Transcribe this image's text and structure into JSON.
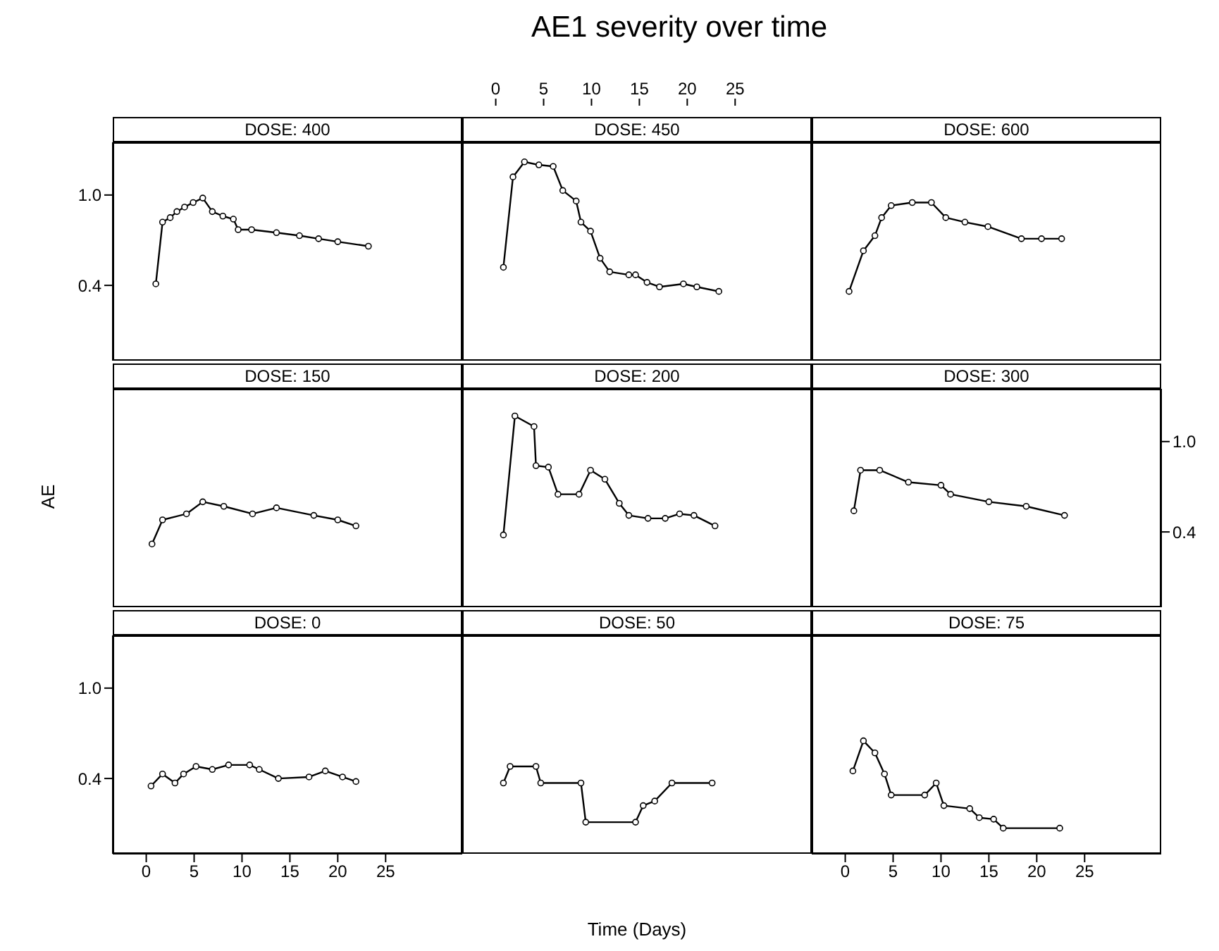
{
  "chart_data": [
    {
      "type": "other",
      "title": "AE1 severity over time",
      "xlabel": "Time (Days)",
      "ylabel": "AE"
    },
    {
      "type": "line",
      "title": "DOSE: 400",
      "xlim": [
        -3.5,
        33
      ],
      "ylim": [
        -0.1,
        1.35
      ],
      "yticks": [
        0.4,
        {
          "value": 1,
          "label": "1.0"
        }
      ],
      "tick_labels": "y",
      "marker": "circle",
      "x": [
        1,
        1.7,
        2.5,
        3.2,
        4,
        4.9,
        5.9,
        6.9,
        8,
        9.1,
        9.6,
        11,
        13.6,
        16,
        18,
        20,
        23.2
      ],
      "series": [
        {
          "color": "#000000",
          "values": [
            0.41,
            0.82,
            0.85,
            0.89,
            0.92,
            0.95,
            0.98,
            0.89,
            0.86,
            0.84,
            0.77,
            0.77,
            0.75,
            0.73,
            0.71,
            0.69,
            0.66
          ]
        }
      ]
    },
    {
      "type": "line",
      "title": "DOSE: 450",
      "xlim": [
        -3.5,
        33
      ],
      "xticks": [
        0,
        5,
        10,
        15,
        20,
        25
      ],
      "ylim": [
        -0.1,
        1.35
      ],
      "tick_labels": "x",
      "marker": "circle",
      "x": [
        0.8,
        1.8,
        3,
        4.5,
        6,
        7,
        8.4,
        8.9,
        9.9,
        10.9,
        11.9,
        13.9,
        14.6,
        15.8,
        17.1,
        19.6,
        21,
        23.3
      ],
      "series": [
        {
          "color": "#000000",
          "values": [
            0.52,
            1.12,
            1.22,
            1.2,
            1.19,
            1.03,
            0.96,
            0.82,
            0.76,
            0.58,
            0.49,
            0.47,
            0.47,
            0.42,
            0.39,
            0.41,
            0.39,
            0.36
          ]
        }
      ]
    },
    {
      "type": "line",
      "title": "DOSE: 600",
      "xlim": [
        -3.5,
        33
      ],
      "ylim": [
        -0.1,
        1.35
      ],
      "tick_labels": false,
      "marker": "circle",
      "x": [
        0.4,
        1.9,
        3.1,
        3.8,
        4.8,
        7,
        9,
        10.5,
        12.5,
        14.9,
        18.4,
        20.5,
        22.6
      ],
      "series": [
        {
          "color": "#000000",
          "values": [
            0.36,
            0.63,
            0.73,
            0.85,
            0.93,
            0.95,
            0.95,
            0.85,
            0.82,
            0.79,
            0.71,
            0.71,
            0.71
          ]
        }
      ]
    },
    {
      "type": "line",
      "title": "DOSE: 150",
      "xlim": [
        -3.5,
        33
      ],
      "ylim": [
        -0.1,
        1.35
      ],
      "tick_labels": false,
      "marker": "circle",
      "x": [
        0.6,
        1.7,
        4.2,
        5.9,
        8.1,
        11.1,
        13.6,
        17.5,
        20,
        21.9
      ],
      "series": [
        {
          "color": "#000000",
          "values": [
            0.32,
            0.48,
            0.52,
            0.6,
            0.57,
            0.52,
            0.56,
            0.51,
            0.48,
            0.44
          ]
        }
      ]
    },
    {
      "type": "line",
      "title": "DOSE: 200",
      "xlim": [
        -3.5,
        33
      ],
      "ylim": [
        -0.1,
        1.35
      ],
      "tick_labels": false,
      "marker": "circle",
      "x": [
        0.8,
        2,
        4,
        4.2,
        5.5,
        6.5,
        8.7,
        9.9,
        11.4,
        12.9,
        13.9,
        15.9,
        17.7,
        19.2,
        20.7,
        22.9
      ],
      "series": [
        {
          "color": "#000000",
          "values": [
            0.38,
            1.17,
            1.1,
            0.84,
            0.83,
            0.65,
            0.65,
            0.81,
            0.75,
            0.59,
            0.51,
            0.49,
            0.49,
            0.52,
            0.51,
            0.44
          ]
        }
      ]
    },
    {
      "type": "line",
      "title": "DOSE: 300",
      "xlim": [
        -3.5,
        33
      ],
      "y2lim": [
        -0.1,
        1.35
      ],
      "y2ticks": [
        0.4,
        {
          "value": 1,
          "label": "1.0"
        }
      ],
      "tick_labels": "y2",
      "marker": "circle",
      "x": [
        0.9,
        1.6,
        3.6,
        6.6,
        10,
        11,
        15,
        18.9,
        22.9
      ],
      "series": [
        {
          "color": "#000000",
          "axis": "y2",
          "values": [
            0.54,
            0.81,
            0.81,
            0.73,
            0.71,
            0.65,
            0.6,
            0.57,
            0.51
          ]
        }
      ]
    },
    {
      "type": "line",
      "title": "DOSE: 0",
      "xlim": [
        -3.5,
        33
      ],
      "xticks": [
        0,
        5,
        10,
        15,
        20,
        25
      ],
      "ylim": [
        -0.1,
        1.35
      ],
      "yticks": [
        0.4,
        {
          "value": 1,
          "label": "1.0"
        }
      ],
      "marker": "circle",
      "x": [
        0.5,
        1.7,
        3,
        3.9,
        5.2,
        6.9,
        8.6,
        10.8,
        11.8,
        13.8,
        17,
        18.7,
        20.5,
        21.9
      ],
      "series": [
        {
          "color": "#000000",
          "values": [
            0.35,
            0.43,
            0.37,
            0.43,
            0.48,
            0.46,
            0.49,
            0.49,
            0.46,
            0.4,
            0.41,
            0.45,
            0.41,
            0.38
          ]
        }
      ]
    },
    {
      "type": "line",
      "title": "DOSE: 50",
      "xlim": [
        -3.5,
        33
      ],
      "ylim": [
        -0.1,
        1.35
      ],
      "tick_labels": false,
      "marker": "circle",
      "x": [
        0.8,
        1.5,
        4.2,
        4.7,
        8.9,
        9.4,
        14.6,
        15.4,
        16.6,
        18.4,
        22.6
      ],
      "series": [
        {
          "color": "#000000",
          "values": [
            0.37,
            0.48,
            0.48,
            0.37,
            0.37,
            0.11,
            0.11,
            0.22,
            0.25,
            0.37,
            0.37
          ]
        }
      ]
    },
    {
      "type": "line",
      "title": "DOSE: 75",
      "xlim": [
        -3.5,
        33
      ],
      "xticks": [
        0,
        5,
        10,
        15,
        20,
        25
      ],
      "ylim": [
        -0.1,
        1.35
      ],
      "tick_labels": "x",
      "marker": "circle",
      "x": [
        0.8,
        1.9,
        3.1,
        4.1,
        4.8,
        8.3,
        9.5,
        10.3,
        13,
        14,
        15.5,
        16.5,
        22.4
      ],
      "series": [
        {
          "color": "#000000",
          "values": [
            0.45,
            0.65,
            0.57,
            0.43,
            0.29,
            0.29,
            0.37,
            0.22,
            0.2,
            0.14,
            0.13,
            0.07,
            0.07
          ]
        }
      ]
    }
  ]
}
